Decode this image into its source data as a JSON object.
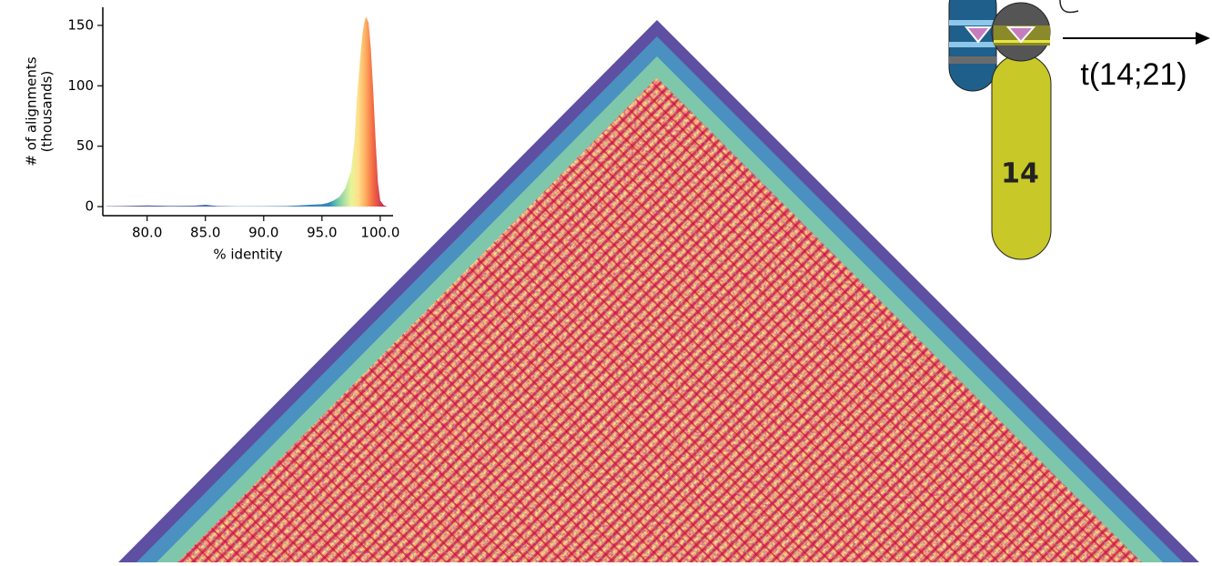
{
  "chart_data": {
    "type": "area",
    "x": [
      76.5,
      78,
      80,
      82,
      84,
      85,
      86,
      88,
      90,
      92,
      93,
      94,
      95,
      95.5,
      96,
      96.5,
      97,
      97.5,
      97.8,
      98,
      98.3,
      98.5,
      98.7,
      98.8,
      99,
      99.2,
      99.4,
      99.6,
      99.8,
      100,
      100.3,
      100.6
    ],
    "values": [
      0.3,
      0.5,
      1,
      0.6,
      0.8,
      1.5,
      0.5,
      0.2,
      0.3,
      0.5,
      1,
      1.5,
      2,
      3,
      5,
      8,
      15,
      30,
      55,
      90,
      125,
      145,
      155,
      157,
      152,
      130,
      95,
      55,
      20,
      5,
      1,
      0
    ],
    "colors": [
      "#5e4fa2",
      "#3288bd",
      "#66c2a5",
      "#abdda4",
      "#e6f598",
      "#fee08b",
      "#fdae61",
      "#f46d43",
      "#d53e4f",
      "#9e0142"
    ],
    "xlim": [
      76.2,
      101.1
    ],
    "ylim": [
      -7.5,
      165
    ],
    "xticks": [
      {
        "value": 80,
        "label": "80.0"
      },
      {
        "value": 85,
        "label": "85.0"
      },
      {
        "value": 90,
        "label": "90.0"
      },
      {
        "value": 95,
        "label": "95.0"
      },
      {
        "value": 100,
        "label": "100.0"
      }
    ],
    "yticks": [
      0,
      50,
      100,
      150
    ],
    "xlabel": "% identity",
    "ylabel": [
      "# of alignments",
      "(thousands)"
    ]
  },
  "diagram": {
    "chromosome_label": "14",
    "translocation_label": "t(14;21)"
  }
}
